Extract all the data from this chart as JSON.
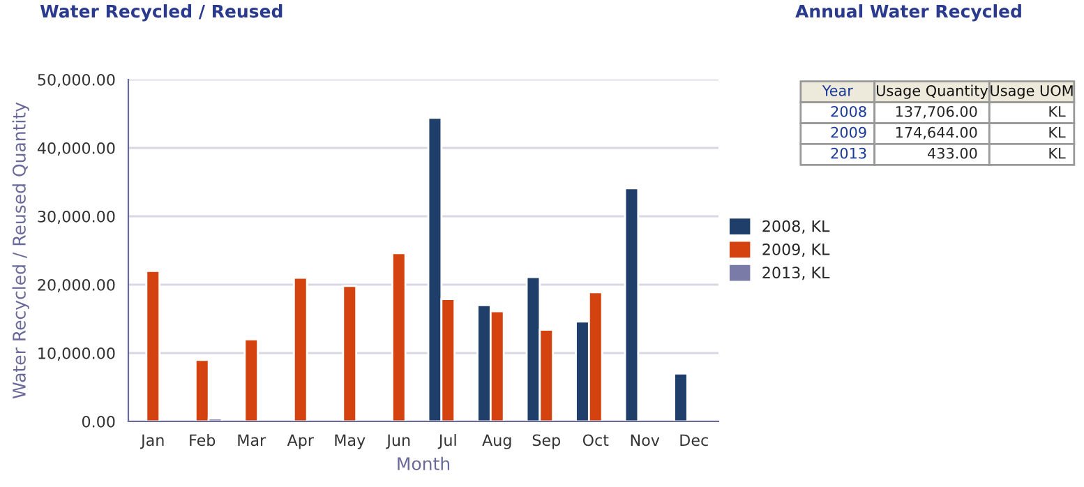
{
  "chart_data": [
    {
      "type": "bar",
      "title": "Water Recycled / Reused",
      "xlabel": "Month",
      "ylabel": "Water Recycled / Reused Quantity",
      "categories": [
        "Jan",
        "Feb",
        "Mar",
        "Apr",
        "May",
        "Jun",
        "Jul",
        "Aug",
        "Sep",
        "Oct",
        "Nov",
        "Dec"
      ],
      "series": [
        {
          "name": "2008, KL",
          "color": "#1f3f6a",
          "values": [
            null,
            null,
            null,
            null,
            null,
            null,
            44400,
            17000,
            21100,
            14600,
            34100,
            7000
          ]
        },
        {
          "name": "2009, KL",
          "color": "#d4420f",
          "values": [
            22000,
            9000,
            12000,
            21000,
            19800,
            24600,
            17900,
            16100,
            13400,
            18900,
            null,
            null
          ]
        },
        {
          "name": "2013, KL",
          "color": "#7b7ba8",
          "values": [
            null,
            433,
            null,
            null,
            null,
            null,
            null,
            null,
            null,
            null,
            null,
            null
          ]
        }
      ],
      "ylim": [
        0,
        50000
      ],
      "yticks": [
        {
          "value": 0,
          "label": "0.00"
        },
        {
          "value": 10000,
          "label": "10,000.00"
        },
        {
          "value": 20000,
          "label": "20,000.00"
        },
        {
          "value": 30000,
          "label": "30,000.00"
        },
        {
          "value": 40000,
          "label": "40,000.00"
        },
        {
          "value": 50000,
          "label": "50,000.00"
        }
      ],
      "grid": "y",
      "legend": "right"
    },
    {
      "type": "other",
      "title": "Annual Water Recycled",
      "categories": [
        "Year",
        "Usage Quantity",
        "Usage UOM"
      ],
      "annotations": [
        "2008",
        "137,706.00",
        "KL",
        "2009",
        "174,644.00",
        "KL",
        "2013",
        "433.00",
        "KL"
      ]
    }
  ]
}
